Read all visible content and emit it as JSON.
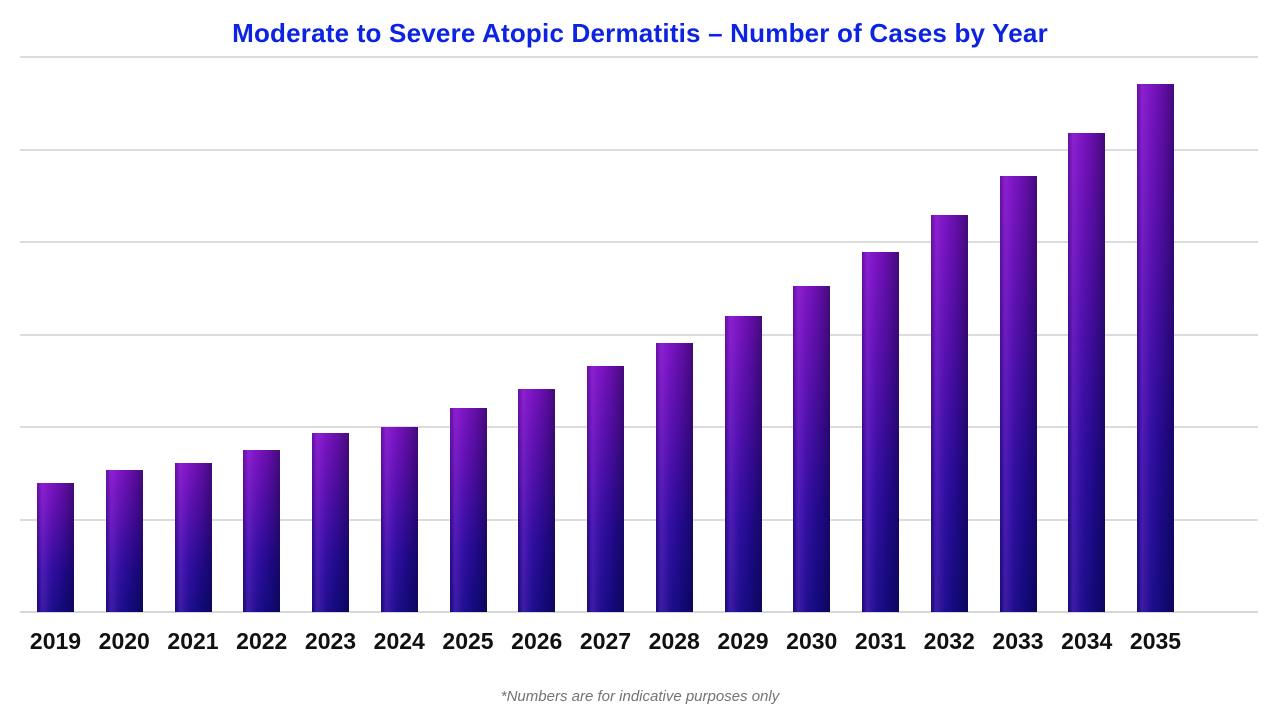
{
  "title": "Moderate to Severe Atopic Dermatitis – Number of Cases by Year",
  "footnote": "*Numbers are for indicative purposes only",
  "colors": {
    "title_blue": "#0c24e1",
    "bar_gradient_top": "#7d12c0",
    "bar_gradient_bottom": "#150c86",
    "gridline": "#dcdcdc",
    "axis_label": "#111111",
    "footnote_gray": "#737373",
    "background": "#ffffff"
  },
  "chart_data": {
    "type": "bar",
    "title": "Moderate to Severe Atopic Dermatitis – Number of Cases by Year",
    "xlabel": "",
    "ylabel": "",
    "categories": [
      "2019",
      "2020",
      "2021",
      "2022",
      "2023",
      "2024",
      "2025",
      "2026",
      "2027",
      "2028",
      "2029",
      "2030",
      "2031",
      "2032",
      "2033",
      "2034",
      "2035"
    ],
    "values": [
      140,
      154,
      161,
      175,
      193,
      200,
      221,
      241,
      266,
      291,
      320,
      352,
      389,
      429,
      471,
      518,
      571
    ],
    "value_note": "relative units estimated from gridlines; no y-axis labels shown; numbers indicative only",
    "ylim": [
      0,
      600
    ],
    "gridline_interval": 100,
    "grid": "horizontal-only",
    "y_axis_tick_labels_visible": false,
    "legend_position": "none"
  }
}
